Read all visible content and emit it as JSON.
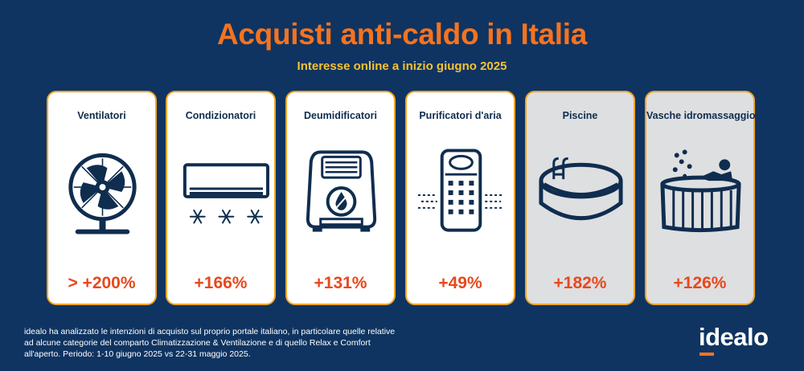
{
  "header": {
    "title": "Acquisti anti-caldo in Italia",
    "subtitle": "Interesse online a inizio giugno 2025"
  },
  "cards": [
    {
      "label": "Ventilatori",
      "value": "> +200%",
      "icon": "fan-icon",
      "background": "white"
    },
    {
      "label": "Condizionatori",
      "value": "+166%",
      "icon": "air-conditioner-icon",
      "background": "white"
    },
    {
      "label": "Deumidificatori",
      "value": "+131%",
      "icon": "dehumidifier-icon",
      "background": "white"
    },
    {
      "label": "Purificatori d'aria",
      "value": "+49%",
      "icon": "air-purifier-icon",
      "background": "white"
    },
    {
      "label": "Piscine",
      "value": "+182%",
      "icon": "pool-icon",
      "background": "grey"
    },
    {
      "label": "Vasche idromassaggio",
      "value": "+126%",
      "icon": "hot-tub-icon",
      "background": "grey"
    }
  ],
  "footer": {
    "note": "idealo ha analizzato le intenzioni di acquisto sul proprio portale italiano, in particolare quelle relative ad alcune categorie del comparto Climatizzazione & Ventilazione e di quello Relax e Comfort all'aperto. Periodo: 1-10 giugno 2025 vs 22-31 maggio 2025.",
    "logo": "idealo"
  },
  "colors": {
    "background": "#0f3461",
    "title": "#f5731f",
    "subtitle": "#f6c233",
    "card_border": "#f6a623",
    "value": "#e8481c",
    "icon": "#0f2d4f"
  }
}
